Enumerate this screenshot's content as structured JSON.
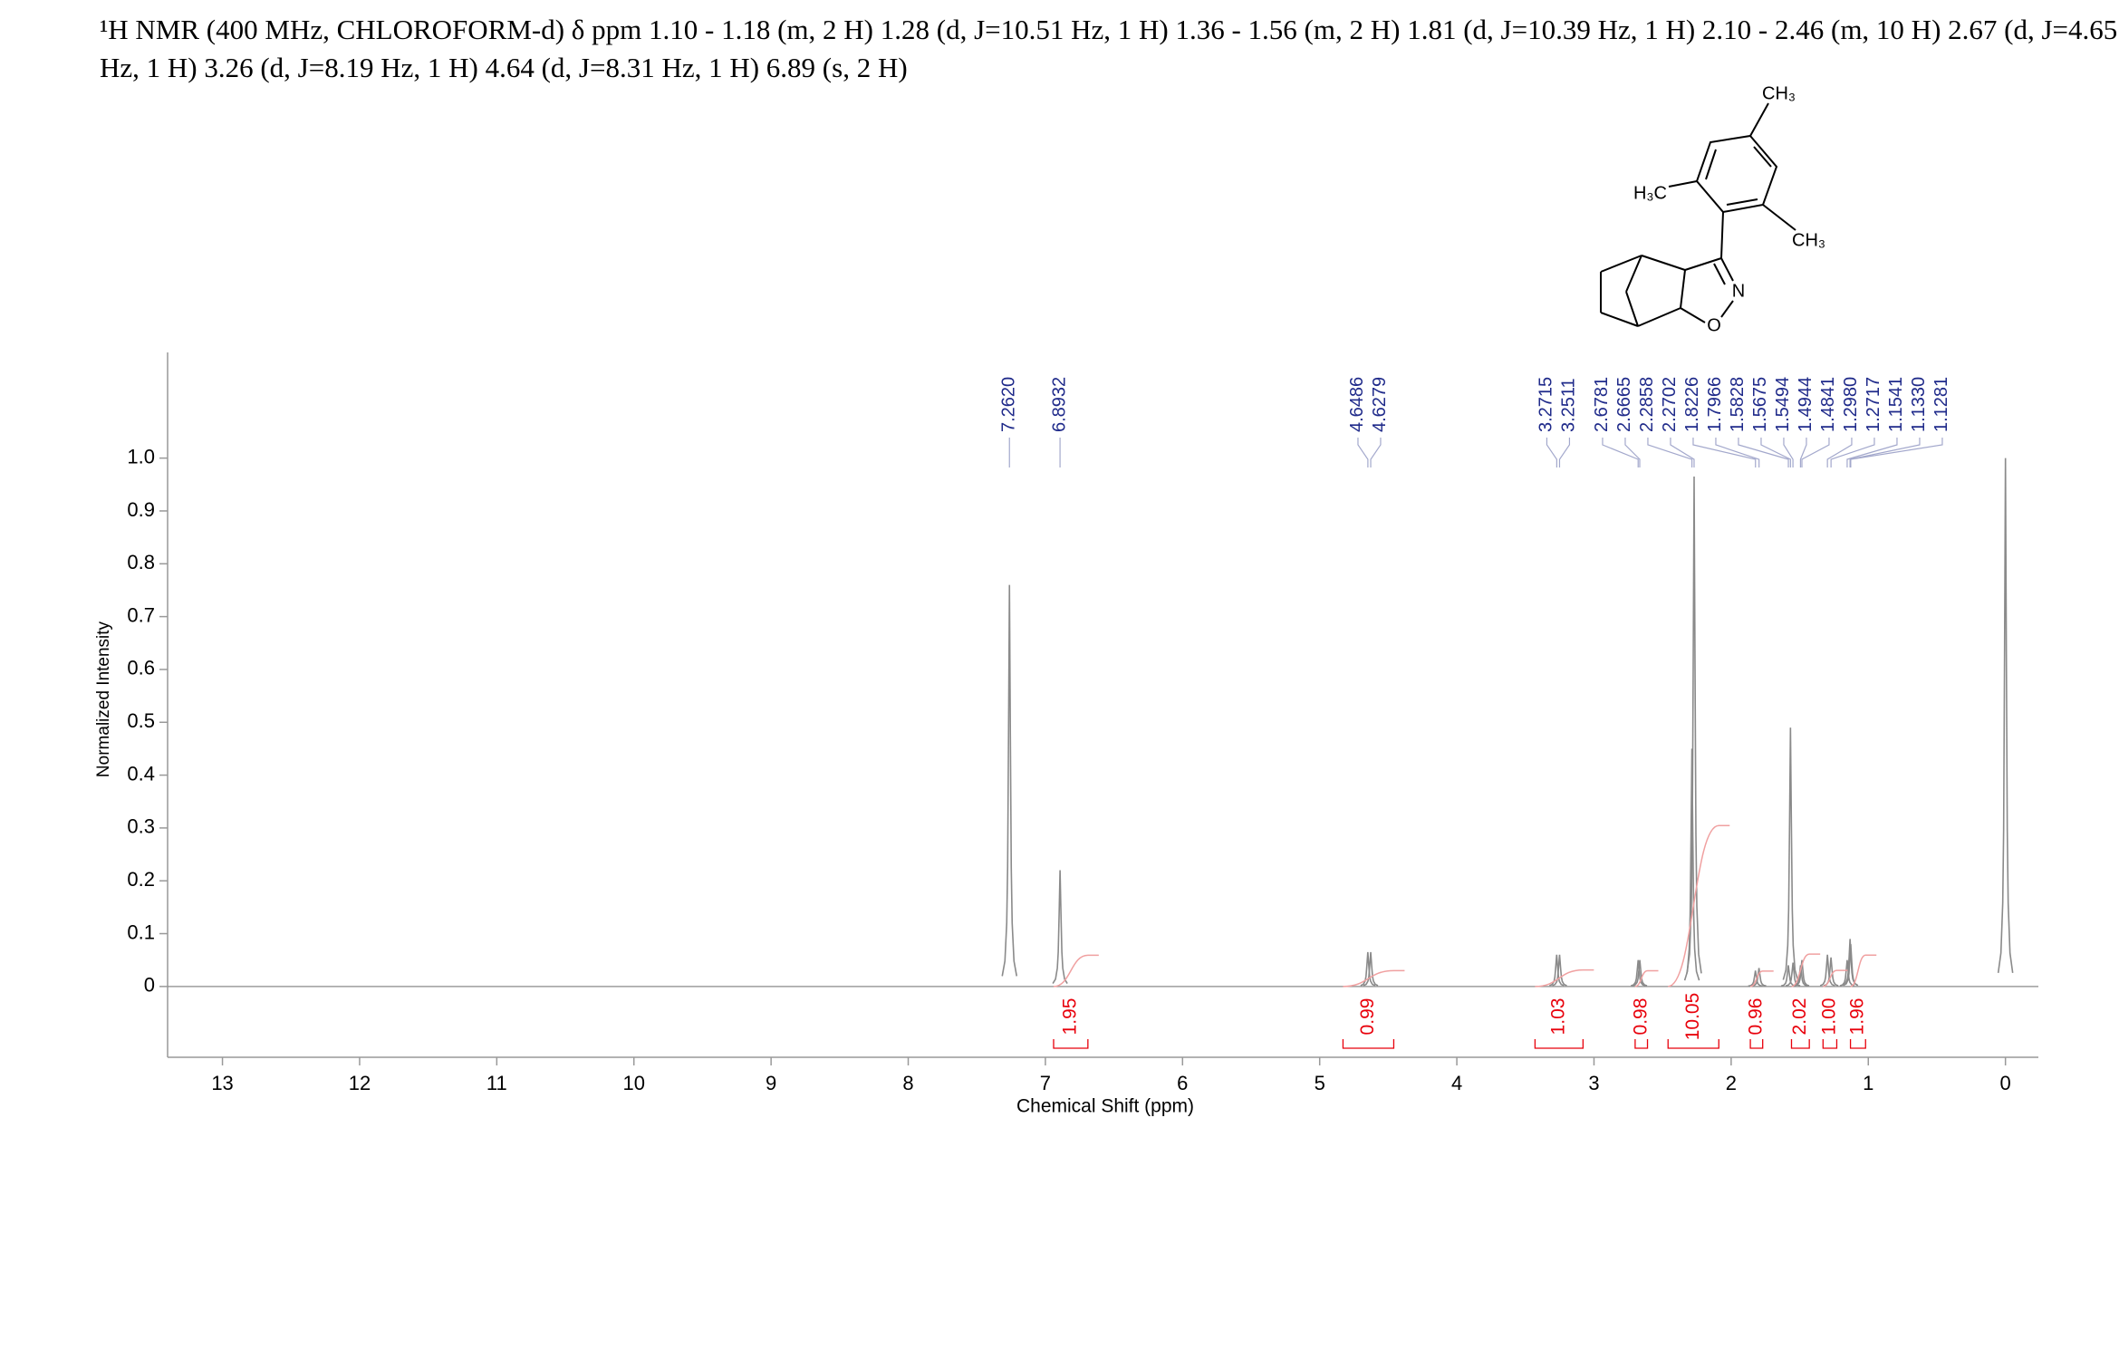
{
  "chart_data": {
    "type": "spectrum",
    "title": "¹H NMR (400 MHz, CHLOROFORM-d) δ ppm 1.10 - 1.18 (m, 2 H) 1.28 (d, J=10.51 Hz, 1 H) 1.36 - 1.56 (m, 2 H) 1.81 (d, J=10.39 Hz, 1 H) 2.10 - 2.46 (m, 10 H) 2.67 (d, J=4.65 Hz, 1 H) 3.26 (d, J=8.19 Hz, 1 H) 4.64 (d, J=8.31 Hz, 1 H) 6.89 (s, 2 H)",
    "xlabel": "Chemical Shift (ppm)",
    "ylabel": "Normalized Intensity",
    "xlim": [
      13.4,
      -0.24
    ],
    "ylim": [
      -0.134,
      1.2
    ],
    "xticks": [
      13,
      12,
      11,
      10,
      9,
      8,
      7,
      6,
      5,
      4,
      3,
      2,
      1,
      0
    ],
    "yticks": [
      0,
      0.1,
      0.2,
      0.3,
      0.4,
      0.5,
      0.6,
      0.7,
      0.8,
      0.9,
      {
        "value": 1,
        "label": "1.0"
      }
    ],
    "color": "#8a8a8a",
    "x": [
      7.262,
      6.893,
      4.649,
      4.628,
      3.272,
      3.251,
      2.678,
      2.666,
      2.286,
      2.27,
      1.823,
      1.797,
      1.583,
      1.5675,
      1.549,
      1.494,
      1.484,
      1.298,
      1.272,
      1.154,
      1.133,
      1.128,
      0.0
    ],
    "values": [
      0.76,
      0.22,
      0.065,
      0.065,
      0.06,
      0.06,
      0.05,
      0.05,
      0.45,
      0.965,
      0.03,
      0.035,
      0.04,
      0.49,
      0.045,
      0.04,
      0.05,
      0.06,
      0.055,
      0.05,
      0.09,
      0.08,
      1.0
    ],
    "peak_labels": [
      {
        "value": 7.262,
        "label": "7.2620"
      },
      {
        "value": 6.8932,
        "label": "6.8932"
      },
      {
        "value": 4.6486,
        "label": "4.6486"
      },
      {
        "value": 4.6279,
        "label": "4.6279"
      },
      {
        "value": 3.2715,
        "label": "3.2715"
      },
      {
        "value": 3.2511,
        "label": "3.2511"
      },
      {
        "value": 2.6781,
        "label": "2.6781"
      },
      {
        "value": 2.6665,
        "label": "2.6665"
      },
      {
        "value": 2.2858,
        "label": "2.2858"
      },
      {
        "value": 2.2702,
        "label": "2.2702"
      },
      {
        "value": 1.8226,
        "label": "1.8226"
      },
      {
        "value": 1.7966,
        "label": "1.7966"
      },
      {
        "value": 1.5828,
        "label": "1.5828"
      },
      {
        "value": 1.5675,
        "label": "1.5675"
      },
      {
        "value": 1.5494,
        "label": "1.5494"
      },
      {
        "value": 1.4944,
        "label": "1.4944"
      },
      {
        "value": 1.4841,
        "label": "1.4841"
      },
      {
        "value": 1.298,
        "label": "1.2980"
      },
      {
        "value": 1.2717,
        "label": "1.2717"
      },
      {
        "value": 1.1541,
        "label": "1.1541"
      },
      {
        "value": 1.133,
        "label": "1.1330"
      },
      {
        "value": 1.1281,
        "label": "1.1281"
      }
    ],
    "integrals": {
      "ranges": [
        [
          6.94,
          6.69
        ],
        [
          4.83,
          4.46
        ],
        [
          3.43,
          3.08
        ],
        [
          2.7,
          2.61
        ],
        [
          2.46,
          2.09
        ],
        [
          1.86,
          1.77
        ],
        [
          1.56,
          1.43
        ],
        [
          1.33,
          1.23
        ],
        [
          1.13,
          1.02
        ]
      ],
      "values": [
        1.95,
        0.99,
        1.03,
        0.98,
        10.05,
        0.96,
        2.02,
        1.0,
        1.96
      ],
      "value_labels": [
        "1.95",
        "0.99",
        "1.03",
        "0.98",
        "10.05",
        "0.96",
        "2.02",
        "1.00",
        "1.96"
      ],
      "color": "#e8000b"
    },
    "structure_labels": [
      "CH₃",
      "H₃C",
      "CH₃",
      "N",
      "O"
    ]
  }
}
